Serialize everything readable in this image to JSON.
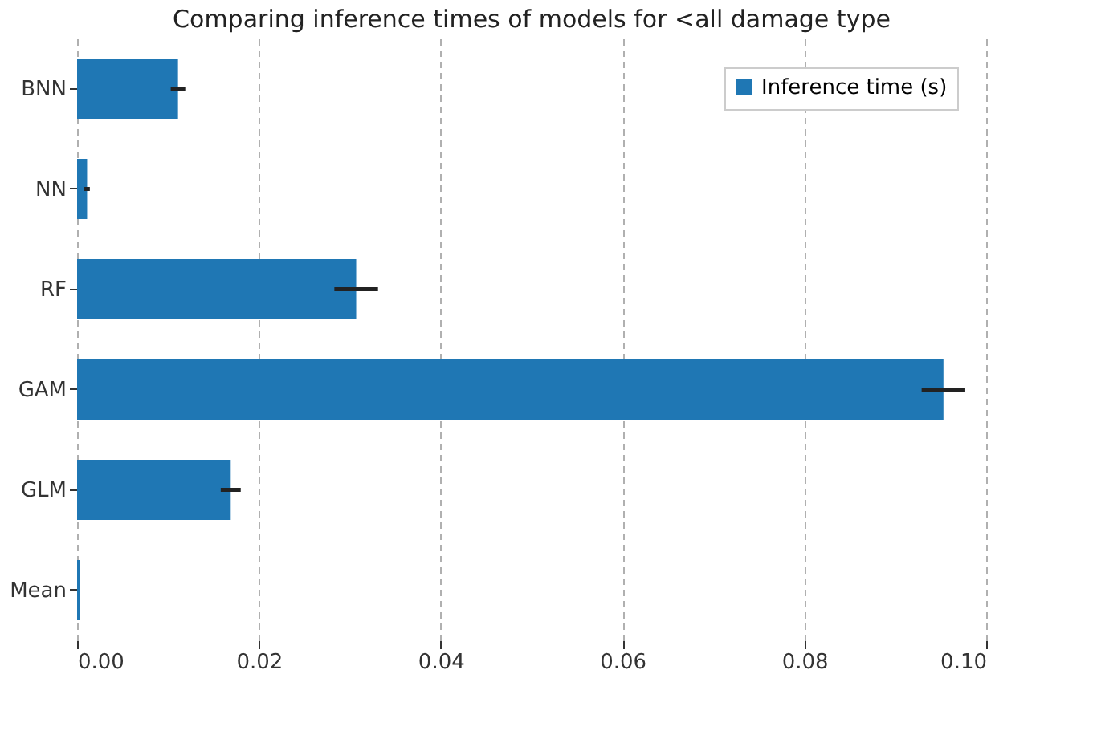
{
  "chart_data": {
    "type": "bar",
    "orientation": "horizontal",
    "title": "Comparing inference times of models for <all damage type",
    "categories": [
      "BNN",
      "NN",
      "RF",
      "GAM",
      "GLM",
      "Mean"
    ],
    "series": [
      {
        "name": "Inference time (s)",
        "color": "#1f77b4",
        "values": [
          0.0111,
          0.0011,
          0.0307,
          0.0953,
          0.0169,
          0.0003
        ],
        "errors": [
          0.0008,
          0.0003,
          0.0024,
          0.0024,
          0.0011,
          null
        ]
      }
    ],
    "xlim": [
      0,
      0.1
    ],
    "xticks": [
      {
        "value": 0,
        "label": "0.00"
      },
      {
        "value": 0.02,
        "label": "0.02"
      },
      {
        "value": 0.04,
        "label": "0.04"
      },
      {
        "value": 0.06,
        "label": "0.06"
      },
      {
        "value": 0.08,
        "label": "0.08"
      },
      {
        "value": 0.1,
        "label": "0.10"
      }
    ],
    "grid": "x",
    "legend": "top right"
  }
}
